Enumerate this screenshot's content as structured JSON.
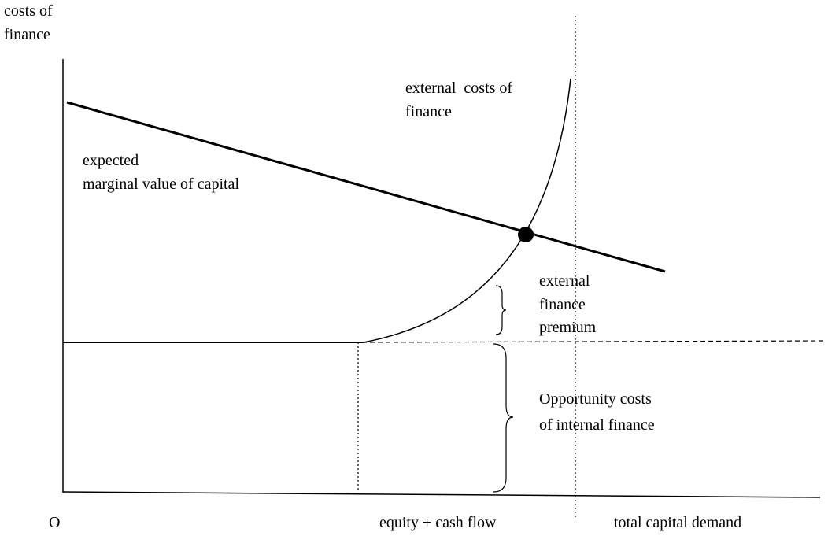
{
  "y_axis_label": [
    "costs of",
    "finance"
  ],
  "x_axis_labels": {
    "origin": "O",
    "equity": "equity + cash flow",
    "total": "total capital demand"
  },
  "curves": {
    "external_costs": [
      "external  costs of",
      "finance"
    ],
    "marginal_value": [
      "expected",
      "marginal value of capital"
    ]
  },
  "braces": {
    "premium": [
      "external",
      "finance",
      "premium"
    ],
    "opportunity": [
      "Opportunity costs",
      "of internal finance"
    ]
  }
}
